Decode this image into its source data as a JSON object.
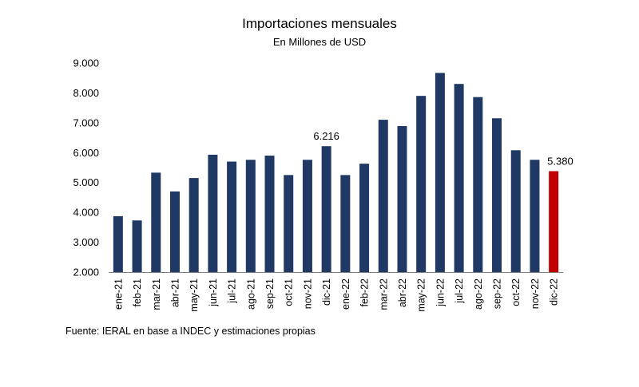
{
  "chart_data": {
    "type": "bar",
    "title": "Importaciones mensuales",
    "subtitle": "En Millones de USD",
    "source": "Fuente: IERAL en base a INDEC y estimaciones propias",
    "categories": [
      "ene-21",
      "feb-21",
      "mar-21",
      "abr-21",
      "may-21",
      "jun-21",
      "jul-21",
      "ago-21",
      "sep-21",
      "oct-21",
      "nov-21",
      "dic-21",
      "ene-22",
      "feb-22",
      "mar-22",
      "abr-22",
      "may-22",
      "jun-22",
      "jul-22",
      "ago-22",
      "sep-22",
      "oct-22",
      "nov-22",
      "dic-22"
    ],
    "values": [
      3870,
      3730,
      5330,
      4700,
      5150,
      5930,
      5700,
      5760,
      5900,
      5250,
      5760,
      6216,
      5250,
      5630,
      7100,
      6890,
      7900,
      8670,
      8300,
      7860,
      7150,
      6080,
      5760,
      5380
    ],
    "ylim": [
      2000,
      9000
    ],
    "yticks": [
      2000,
      3000,
      4000,
      5000,
      6000,
      7000,
      8000,
      9000
    ],
    "ytick_labels": [
      "2.000",
      "3.000",
      "4.000",
      "5.000",
      "6.000",
      "7.000",
      "8.000",
      "9.000"
    ],
    "data_labels": [
      {
        "category": "dic-21",
        "text": "6.216"
      },
      {
        "category": "dic-22",
        "text": "5.380"
      }
    ],
    "highlight_category": "dic-22",
    "xlabel": "",
    "ylabel": "",
    "grid": false
  },
  "colors": {
    "bar": "#1f3864",
    "highlight": "#c00000",
    "axis": "#7f7f7f"
  }
}
